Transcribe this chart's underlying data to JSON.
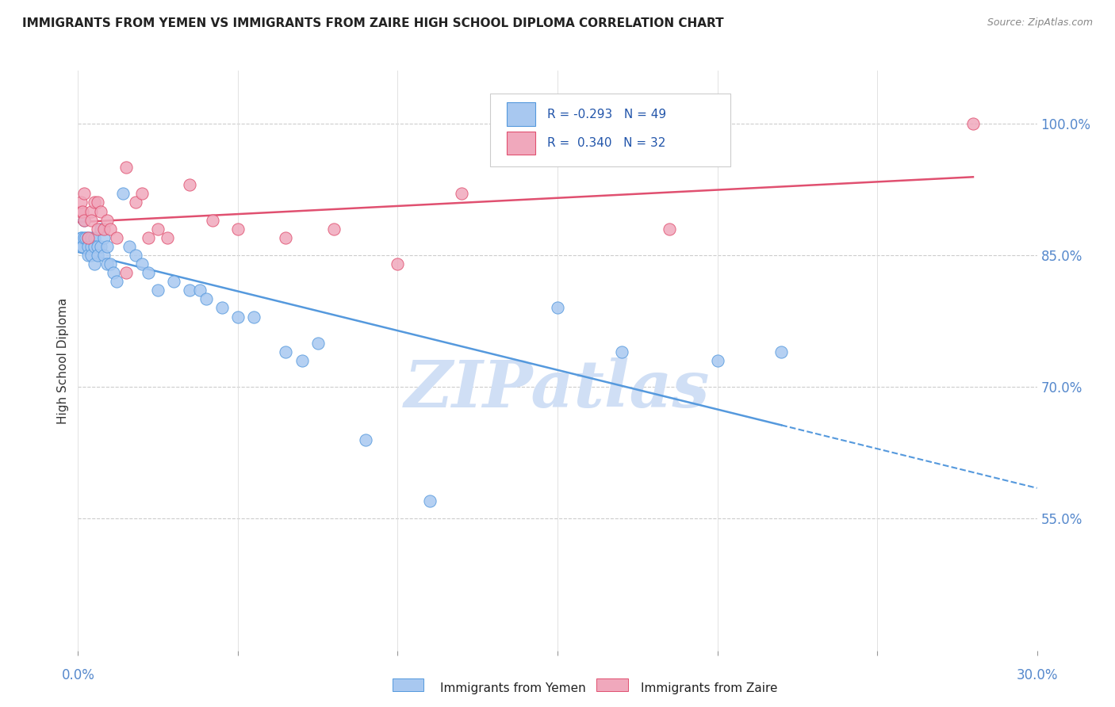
{
  "title": "IMMIGRANTS FROM YEMEN VS IMMIGRANTS FROM ZAIRE HIGH SCHOOL DIPLOMA CORRELATION CHART",
  "source": "Source: ZipAtlas.com",
  "ylabel": "High School Diploma",
  "ytick_vals": [
    1.0,
    0.85,
    0.7,
    0.55
  ],
  "ytick_labels": [
    "100.0%",
    "85.0%",
    "70.0%",
    "55.0%"
  ],
  "xlim": [
    0.0,
    0.3
  ],
  "ylim": [
    0.4,
    1.06
  ],
  "legend_r_yemen": "R = -0.293",
  "legend_n_yemen": "N = 49",
  "legend_r_zaire": "R =  0.340",
  "legend_n_zaire": "N = 32",
  "yemen_color": "#A8C8F0",
  "zaire_color": "#F0A8BC",
  "trendline_yemen_color": "#5599DD",
  "trendline_zaire_color": "#E05070",
  "watermark": "ZIPatlas",
  "watermark_color": "#D0DFF5",
  "yemen_x": [
    0.0008,
    0.001,
    0.0012,
    0.0015,
    0.002,
    0.002,
    0.0025,
    0.003,
    0.003,
    0.003,
    0.004,
    0.004,
    0.004,
    0.005,
    0.005,
    0.005,
    0.006,
    0.006,
    0.007,
    0.007,
    0.008,
    0.008,
    0.009,
    0.009,
    0.01,
    0.011,
    0.012,
    0.014,
    0.016,
    0.018,
    0.02,
    0.022,
    0.025,
    0.03,
    0.035,
    0.038,
    0.04,
    0.045,
    0.05,
    0.055,
    0.065,
    0.07,
    0.075,
    0.09,
    0.11,
    0.15,
    0.17,
    0.2,
    0.22
  ],
  "yemen_y": [
    0.87,
    0.86,
    0.87,
    0.86,
    0.89,
    0.87,
    0.87,
    0.87,
    0.86,
    0.85,
    0.87,
    0.86,
    0.85,
    0.87,
    0.86,
    0.84,
    0.86,
    0.85,
    0.88,
    0.86,
    0.87,
    0.85,
    0.86,
    0.84,
    0.84,
    0.83,
    0.82,
    0.92,
    0.86,
    0.85,
    0.84,
    0.83,
    0.81,
    0.82,
    0.81,
    0.81,
    0.8,
    0.79,
    0.78,
    0.78,
    0.74,
    0.73,
    0.75,
    0.64,
    0.57,
    0.79,
    0.74,
    0.73,
    0.74
  ],
  "zaire_x": [
    0.0008,
    0.001,
    0.0015,
    0.002,
    0.002,
    0.003,
    0.004,
    0.004,
    0.005,
    0.006,
    0.006,
    0.007,
    0.008,
    0.009,
    0.01,
    0.012,
    0.015,
    0.015,
    0.018,
    0.02,
    0.022,
    0.025,
    0.028,
    0.035,
    0.042,
    0.05,
    0.065,
    0.08,
    0.1,
    0.12,
    0.185,
    0.28
  ],
  "zaire_y": [
    0.9,
    0.91,
    0.9,
    0.92,
    0.89,
    0.87,
    0.9,
    0.89,
    0.91,
    0.88,
    0.91,
    0.9,
    0.88,
    0.89,
    0.88,
    0.87,
    0.83,
    0.95,
    0.91,
    0.92,
    0.87,
    0.88,
    0.87,
    0.93,
    0.89,
    0.88,
    0.87,
    0.88,
    0.84,
    0.92,
    0.88,
    1.0
  ],
  "xtick_positions": [
    0.0,
    0.05,
    0.1,
    0.15,
    0.2,
    0.25,
    0.3
  ]
}
